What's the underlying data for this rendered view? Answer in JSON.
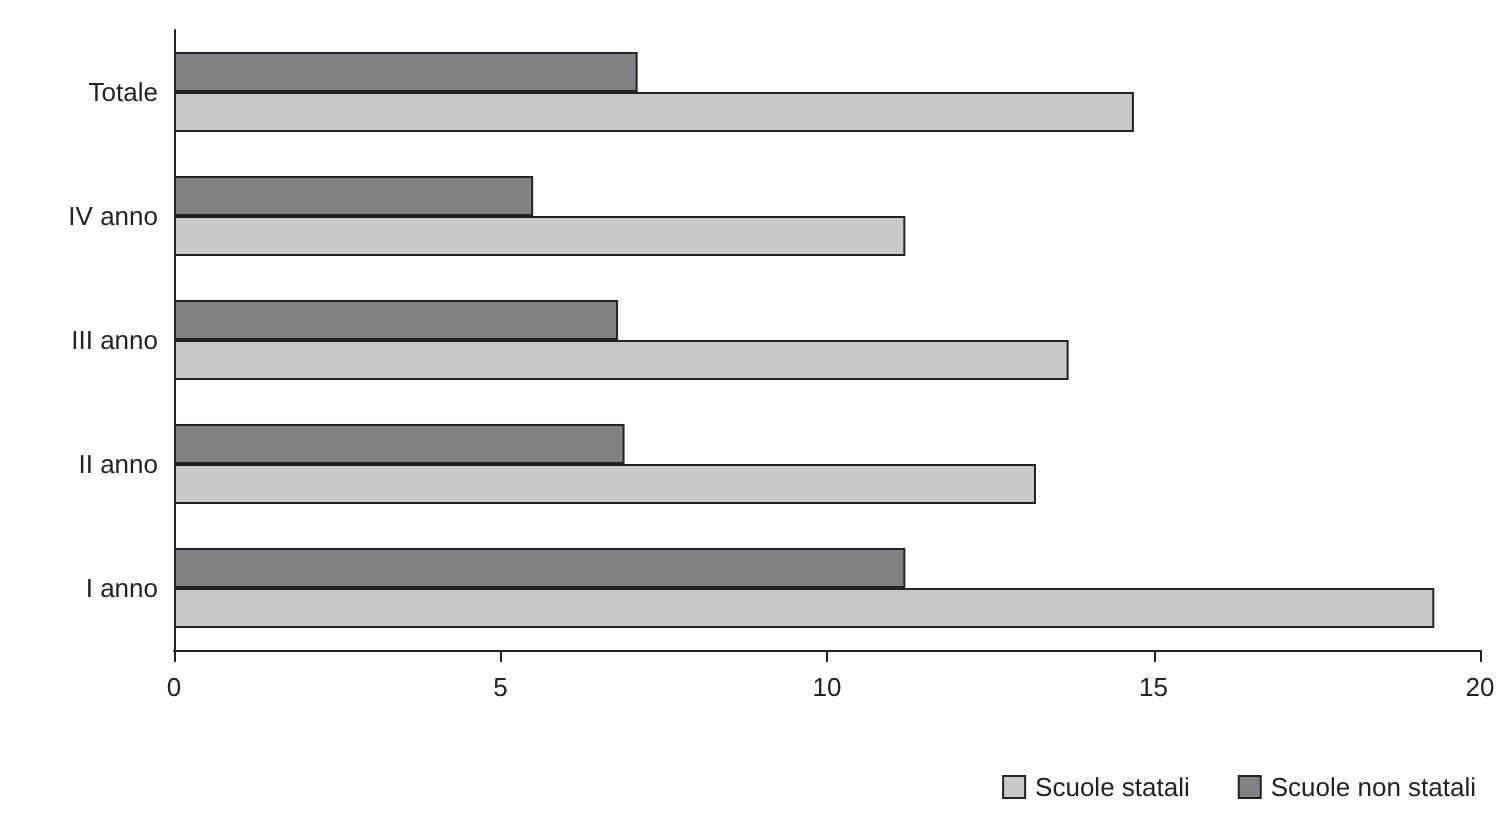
{
  "chart_data": {
    "type": "bar",
    "orientation": "horizontal",
    "categories": [
      "Totale",
      "IV anno",
      "III anno",
      "II anno",
      "I anno"
    ],
    "series": [
      {
        "name": "Scuole statali",
        "color": "#c8c9cb",
        "values": [
          14.7,
          11.2,
          13.7,
          13.2,
          19.3
        ]
      },
      {
        "name": "Scuole non statali",
        "color": "#808285",
        "values": [
          7.1,
          5.5,
          6.8,
          6.9,
          11.2
        ]
      }
    ],
    "xlim": [
      0,
      20
    ],
    "xticks": [
      0,
      5,
      10,
      15,
      20
    ],
    "grid": false,
    "legend": "bottom right"
  }
}
